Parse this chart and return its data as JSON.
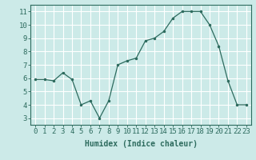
{
  "x": [
    0,
    1,
    2,
    3,
    4,
    5,
    6,
    7,
    8,
    9,
    10,
    11,
    12,
    13,
    14,
    15,
    16,
    17,
    18,
    19,
    20,
    21,
    22,
    23
  ],
  "y": [
    5.9,
    5.9,
    5.8,
    6.4,
    5.9,
    4.0,
    4.3,
    3.0,
    4.3,
    7.0,
    7.3,
    7.5,
    8.8,
    9.0,
    9.5,
    10.5,
    11.0,
    11.0,
    11.0,
    10.0,
    8.4,
    5.8,
    4.0,
    4.0
  ],
  "xlabel": "Humidex (Indice chaleur)",
  "xlim": [
    -0.5,
    23.5
  ],
  "ylim": [
    2.5,
    11.5
  ],
  "yticks": [
    3,
    4,
    5,
    6,
    7,
    8,
    9,
    10,
    11
  ],
  "xticks": [
    0,
    1,
    2,
    3,
    4,
    5,
    6,
    7,
    8,
    9,
    10,
    11,
    12,
    13,
    14,
    15,
    16,
    17,
    18,
    19,
    20,
    21,
    22,
    23
  ],
  "line_color": "#2d6b5e",
  "marker_color": "#2d6b5e",
  "bg_color": "#cceae8",
  "grid_color": "#ffffff",
  "tick_color": "#2d6b5e",
  "label_color": "#2d6b5e",
  "xlabel_fontsize": 7,
  "tick_fontsize": 6.5
}
